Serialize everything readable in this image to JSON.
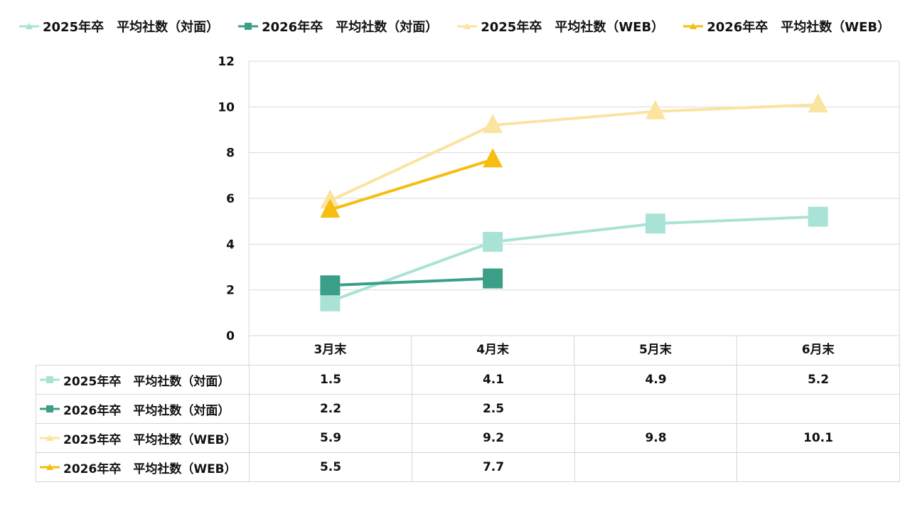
{
  "chart_data": {
    "type": "line",
    "categories": [
      "3月末",
      "4月末",
      "5月末",
      "6月末"
    ],
    "ylim": [
      0,
      12
    ],
    "yticks": [
      0,
      2,
      4,
      6,
      8,
      10,
      12
    ],
    "grid": true,
    "legend_position": "top",
    "data_table": true,
    "series": [
      {
        "name": "2025年卒　平均社数（対面）",
        "values": [
          1.5,
          4.1,
          4.9,
          5.2
        ],
        "color": "#a9e3d6",
        "marker": "square"
      },
      {
        "name": "2026年卒　平均社数（対面）",
        "values": [
          2.2,
          2.5,
          null,
          null
        ],
        "color": "#3a9f86",
        "marker": "square"
      },
      {
        "name": "2025年卒　平均社数（WEB）",
        "values": [
          5.9,
          9.2,
          9.8,
          10.1
        ],
        "color": "#fbe3a0",
        "marker": "triangle"
      },
      {
        "name": "2026年卒　平均社数（WEB）",
        "values": [
          5.5,
          7.7,
          null,
          null
        ],
        "color": "#f6bd12",
        "marker": "triangle"
      }
    ],
    "table_values": [
      [
        "1.5",
        "4.1",
        "4.9",
        "5.2"
      ],
      [
        "2.2",
        "2.5",
        "",
        ""
      ],
      [
        "5.9",
        "9.2",
        "9.8",
        "10.1"
      ],
      [
        "5.5",
        "7.7",
        "",
        ""
      ]
    ]
  }
}
